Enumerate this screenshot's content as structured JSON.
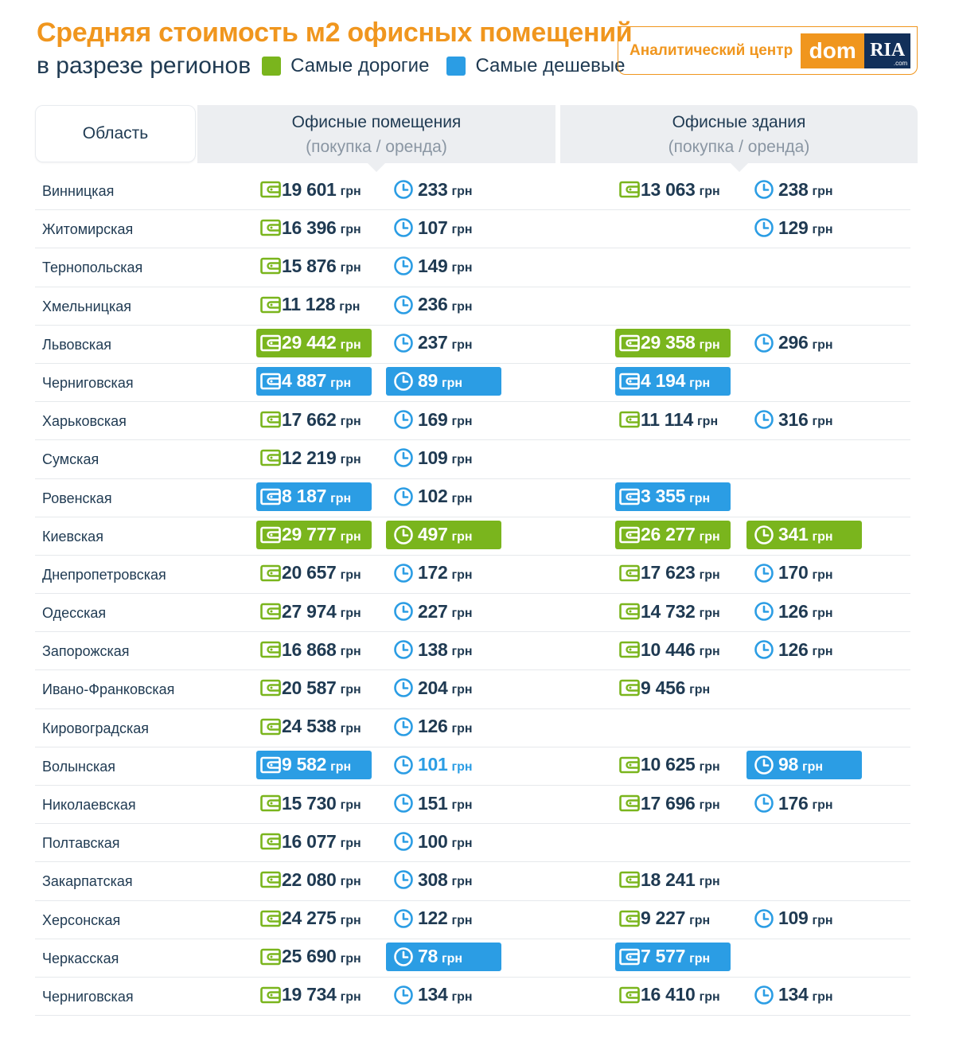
{
  "title": "Средняя стоимость м2 офисных помещений",
  "subtitle": "в разрезе регионов",
  "legend": {
    "expensive": {
      "label": "Самые дорогие",
      "color": "#7ab51d"
    },
    "cheap": {
      "label": "Самые дешевые",
      "color": "#2b9de4"
    }
  },
  "logo": {
    "text": "Аналитический центр",
    "brand_dom": "dom",
    "brand_ria": "RIA",
    "brand_com": ".com"
  },
  "header": {
    "region": "Область",
    "group1": {
      "title": "Офисные помещения",
      "sub": "(покупка / оренда)"
    },
    "group2": {
      "title": "Офисные здания",
      "sub": "(покупка / оренда)"
    }
  },
  "unit": "грн",
  "icons": {
    "buy": "wallet-icon",
    "rent": "clock-icon"
  },
  "rows": [
    {
      "region": "Винницкая",
      "cells": [
        {
          "v": "19 601",
          "h": ""
        },
        {
          "v": "233",
          "h": ""
        },
        {
          "v": "13 063",
          "h": ""
        },
        {
          "v": "238",
          "h": ""
        }
      ]
    },
    {
      "region": "Житомирская",
      "cells": [
        {
          "v": "16 396",
          "h": ""
        },
        {
          "v": "107",
          "h": ""
        },
        null,
        {
          "v": "129",
          "h": ""
        }
      ]
    },
    {
      "region": "Тернопольская",
      "cells": [
        {
          "v": "15 876",
          "h": ""
        },
        {
          "v": "149",
          "h": ""
        },
        null,
        null
      ]
    },
    {
      "region": "Хмельницкая",
      "cells": [
        {
          "v": "11 128",
          "h": ""
        },
        {
          "v": "236",
          "h": ""
        },
        null,
        null
      ]
    },
    {
      "region": "Львовская",
      "cells": [
        {
          "v": "29 442",
          "h": "green"
        },
        {
          "v": "237",
          "h": ""
        },
        {
          "v": "29 358",
          "h": "green"
        },
        {
          "v": "296",
          "h": ""
        }
      ]
    },
    {
      "region": "Черниговская",
      "cells": [
        {
          "v": "4 887",
          "h": "blue"
        },
        {
          "v": "89",
          "h": "blue"
        },
        {
          "v": "4 194",
          "h": "blue"
        },
        null
      ]
    },
    {
      "region": "Харьковская",
      "cells": [
        {
          "v": "17 662",
          "h": ""
        },
        {
          "v": "169",
          "h": ""
        },
        {
          "v": "11 114",
          "h": ""
        },
        {
          "v": "316",
          "h": ""
        }
      ]
    },
    {
      "region": "Сумская",
      "cells": [
        {
          "v": "12 219",
          "h": ""
        },
        {
          "v": "109",
          "h": ""
        },
        null,
        null
      ]
    },
    {
      "region": "Ровенская",
      "cells": [
        {
          "v": "8 187",
          "h": "blue"
        },
        {
          "v": "102",
          "h": ""
        },
        {
          "v": "3 355",
          "h": "blue"
        },
        null
      ]
    },
    {
      "region": "Киевская",
      "cells": [
        {
          "v": "29 777",
          "h": "green"
        },
        {
          "v": "497",
          "h": "green"
        },
        {
          "v": "26 277",
          "h": "green"
        },
        {
          "v": "341",
          "h": "green"
        }
      ]
    },
    {
      "region": "Днепропетровская",
      "cells": [
        {
          "v": "20 657",
          "h": ""
        },
        {
          "v": "172",
          "h": ""
        },
        {
          "v": "17 623",
          "h": ""
        },
        {
          "v": "170",
          "h": ""
        }
      ]
    },
    {
      "region": "Одесская",
      "cells": [
        {
          "v": "27 974",
          "h": ""
        },
        {
          "v": "227",
          "h": ""
        },
        {
          "v": "14 732",
          "h": ""
        },
        {
          "v": "126",
          "h": ""
        }
      ]
    },
    {
      "region": "Запорожская",
      "cells": [
        {
          "v": "16 868",
          "h": ""
        },
        {
          "v": "138",
          "h": ""
        },
        {
          "v": "10 446",
          "h": ""
        },
        {
          "v": "126",
          "h": ""
        }
      ]
    },
    {
      "region": "Ивано-Франковская",
      "cells": [
        {
          "v": "20 587",
          "h": ""
        },
        {
          "v": "204",
          "h": ""
        },
        {
          "v": "9 456",
          "h": ""
        },
        null
      ]
    },
    {
      "region": "Кировоградская",
      "cells": [
        {
          "v": "24 538",
          "h": ""
        },
        {
          "v": "126",
          "h": ""
        },
        null,
        null
      ]
    },
    {
      "region": "Волынская",
      "cells": [
        {
          "v": "9 582",
          "h": "blue"
        },
        {
          "v": "101",
          "h": "plain-blue"
        },
        {
          "v": "10 625",
          "h": ""
        },
        {
          "v": "98",
          "h": "blue"
        }
      ]
    },
    {
      "region": "Николаевская",
      "cells": [
        {
          "v": "15 730",
          "h": ""
        },
        {
          "v": "151",
          "h": ""
        },
        {
          "v": "17 696",
          "h": ""
        },
        {
          "v": "176",
          "h": ""
        }
      ]
    },
    {
      "region": "Полтавская",
      "cells": [
        {
          "v": "16 077",
          "h": ""
        },
        {
          "v": "100",
          "h": ""
        },
        null,
        null
      ]
    },
    {
      "region": "Закарпатская",
      "cells": [
        {
          "v": "22 080",
          "h": ""
        },
        {
          "v": "308",
          "h": ""
        },
        {
          "v": "18 241",
          "h": ""
        },
        null
      ]
    },
    {
      "region": "Херсонская",
      "cells": [
        {
          "v": "24 275",
          "h": ""
        },
        {
          "v": "122",
          "h": ""
        },
        {
          "v": "9 227",
          "h": ""
        },
        {
          "v": "109",
          "h": ""
        }
      ]
    },
    {
      "region": "Черкасская",
      "cells": [
        {
          "v": "25 690",
          "h": ""
        },
        {
          "v": "78",
          "h": "blue"
        },
        {
          "v": "7 577",
          "h": "blue"
        },
        null
      ]
    },
    {
      "region": "Черниговская",
      "cells": [
        {
          "v": "19 734",
          "h": ""
        },
        {
          "v": "134",
          "h": ""
        },
        {
          "v": "16 410",
          "h": ""
        },
        {
          "v": "134",
          "h": ""
        }
      ]
    }
  ]
}
